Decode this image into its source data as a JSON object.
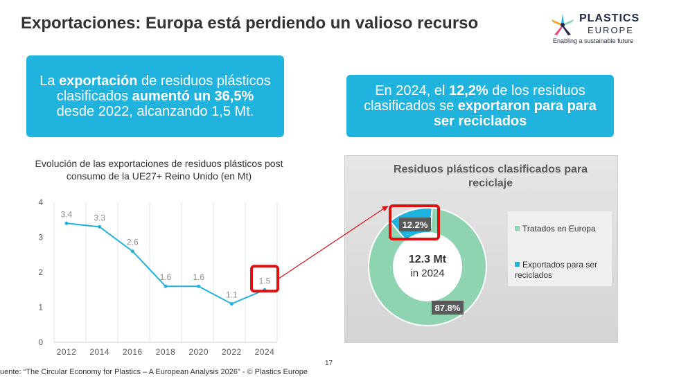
{
  "slide": {
    "title": "Exportaciones: Europa está perdiendo un valioso recurso",
    "page_number": "17",
    "source": "uente: “The Circular Economy for Plastics – A European Analysis 2026” - © Plastics Europe"
  },
  "logo": {
    "line1": "PLASTICS",
    "line2": "EUROPE",
    "tagline": "Enabling a sustainable future"
  },
  "callouts": {
    "left": [
      {
        "text": "La ",
        "bold": false
      },
      {
        "text": "exportación",
        "bold": true
      },
      {
        "text": " de residuos plásticos clasificados ",
        "bold": false
      },
      {
        "text": "aumentó un 36,5%",
        "bold": true
      },
      {
        "text": " desde 2022, alcanzando 1,5 Mt.",
        "bold": false
      }
    ],
    "right": [
      {
        "text": "En 2024, el ",
        "bold": false
      },
      {
        "text": "12,2%",
        "bold": true
      },
      {
        "text": " de los residuos clasificados se ",
        "bold": false
      },
      {
        "text": "exportaron para para ser reciclados",
        "bold": true
      }
    ]
  },
  "colors": {
    "callout": "#1fb3de",
    "line": "#1fb3de",
    "europa": "#8ed4b0",
    "export": "#1fb3de",
    "highlight": "#e01010",
    "label_box": "#595959"
  },
  "chart_data": [
    {
      "type": "line",
      "title": "Evolución de las exportaciones de residuos plásticos post consumo de la UE27+ Reino Unido (en Mt)",
      "x": [
        "2012",
        "2014",
        "2016",
        "2018",
        "2020",
        "2022",
        "2024"
      ],
      "series": [
        {
          "values": [
            3.4,
            3.3,
            2.6,
            1.6,
            1.6,
            1.1,
            1.5
          ]
        }
      ],
      "data_labels": [
        "3.4",
        "3.3",
        "2.6",
        "1.6",
        "1.6",
        "1.1",
        "1.5"
      ],
      "yticks": [
        "0",
        "1",
        "2",
        "3",
        "4"
      ],
      "ylim": [
        0,
        4
      ],
      "grid": "vertical",
      "highlight_category": "2024"
    },
    {
      "type": "pie",
      "title": "Residuos plásticos clasificados para reciclaje",
      "donut": true,
      "center_label": [
        "12.3 Mt",
        "in 2024"
      ],
      "slices": [
        {
          "name": "Exportados para ser reciclados",
          "value": 12.2,
          "label": "12.2%",
          "color": "#1fb3de"
        },
        {
          "name": "Tratados en Europa",
          "value": 87.8,
          "label": "87.8%",
          "color": "#8ed4b0"
        }
      ],
      "legend_order": [
        "Tratados en Europa",
        "Exportados para ser reciclados"
      ],
      "legend_position": "right"
    }
  ]
}
